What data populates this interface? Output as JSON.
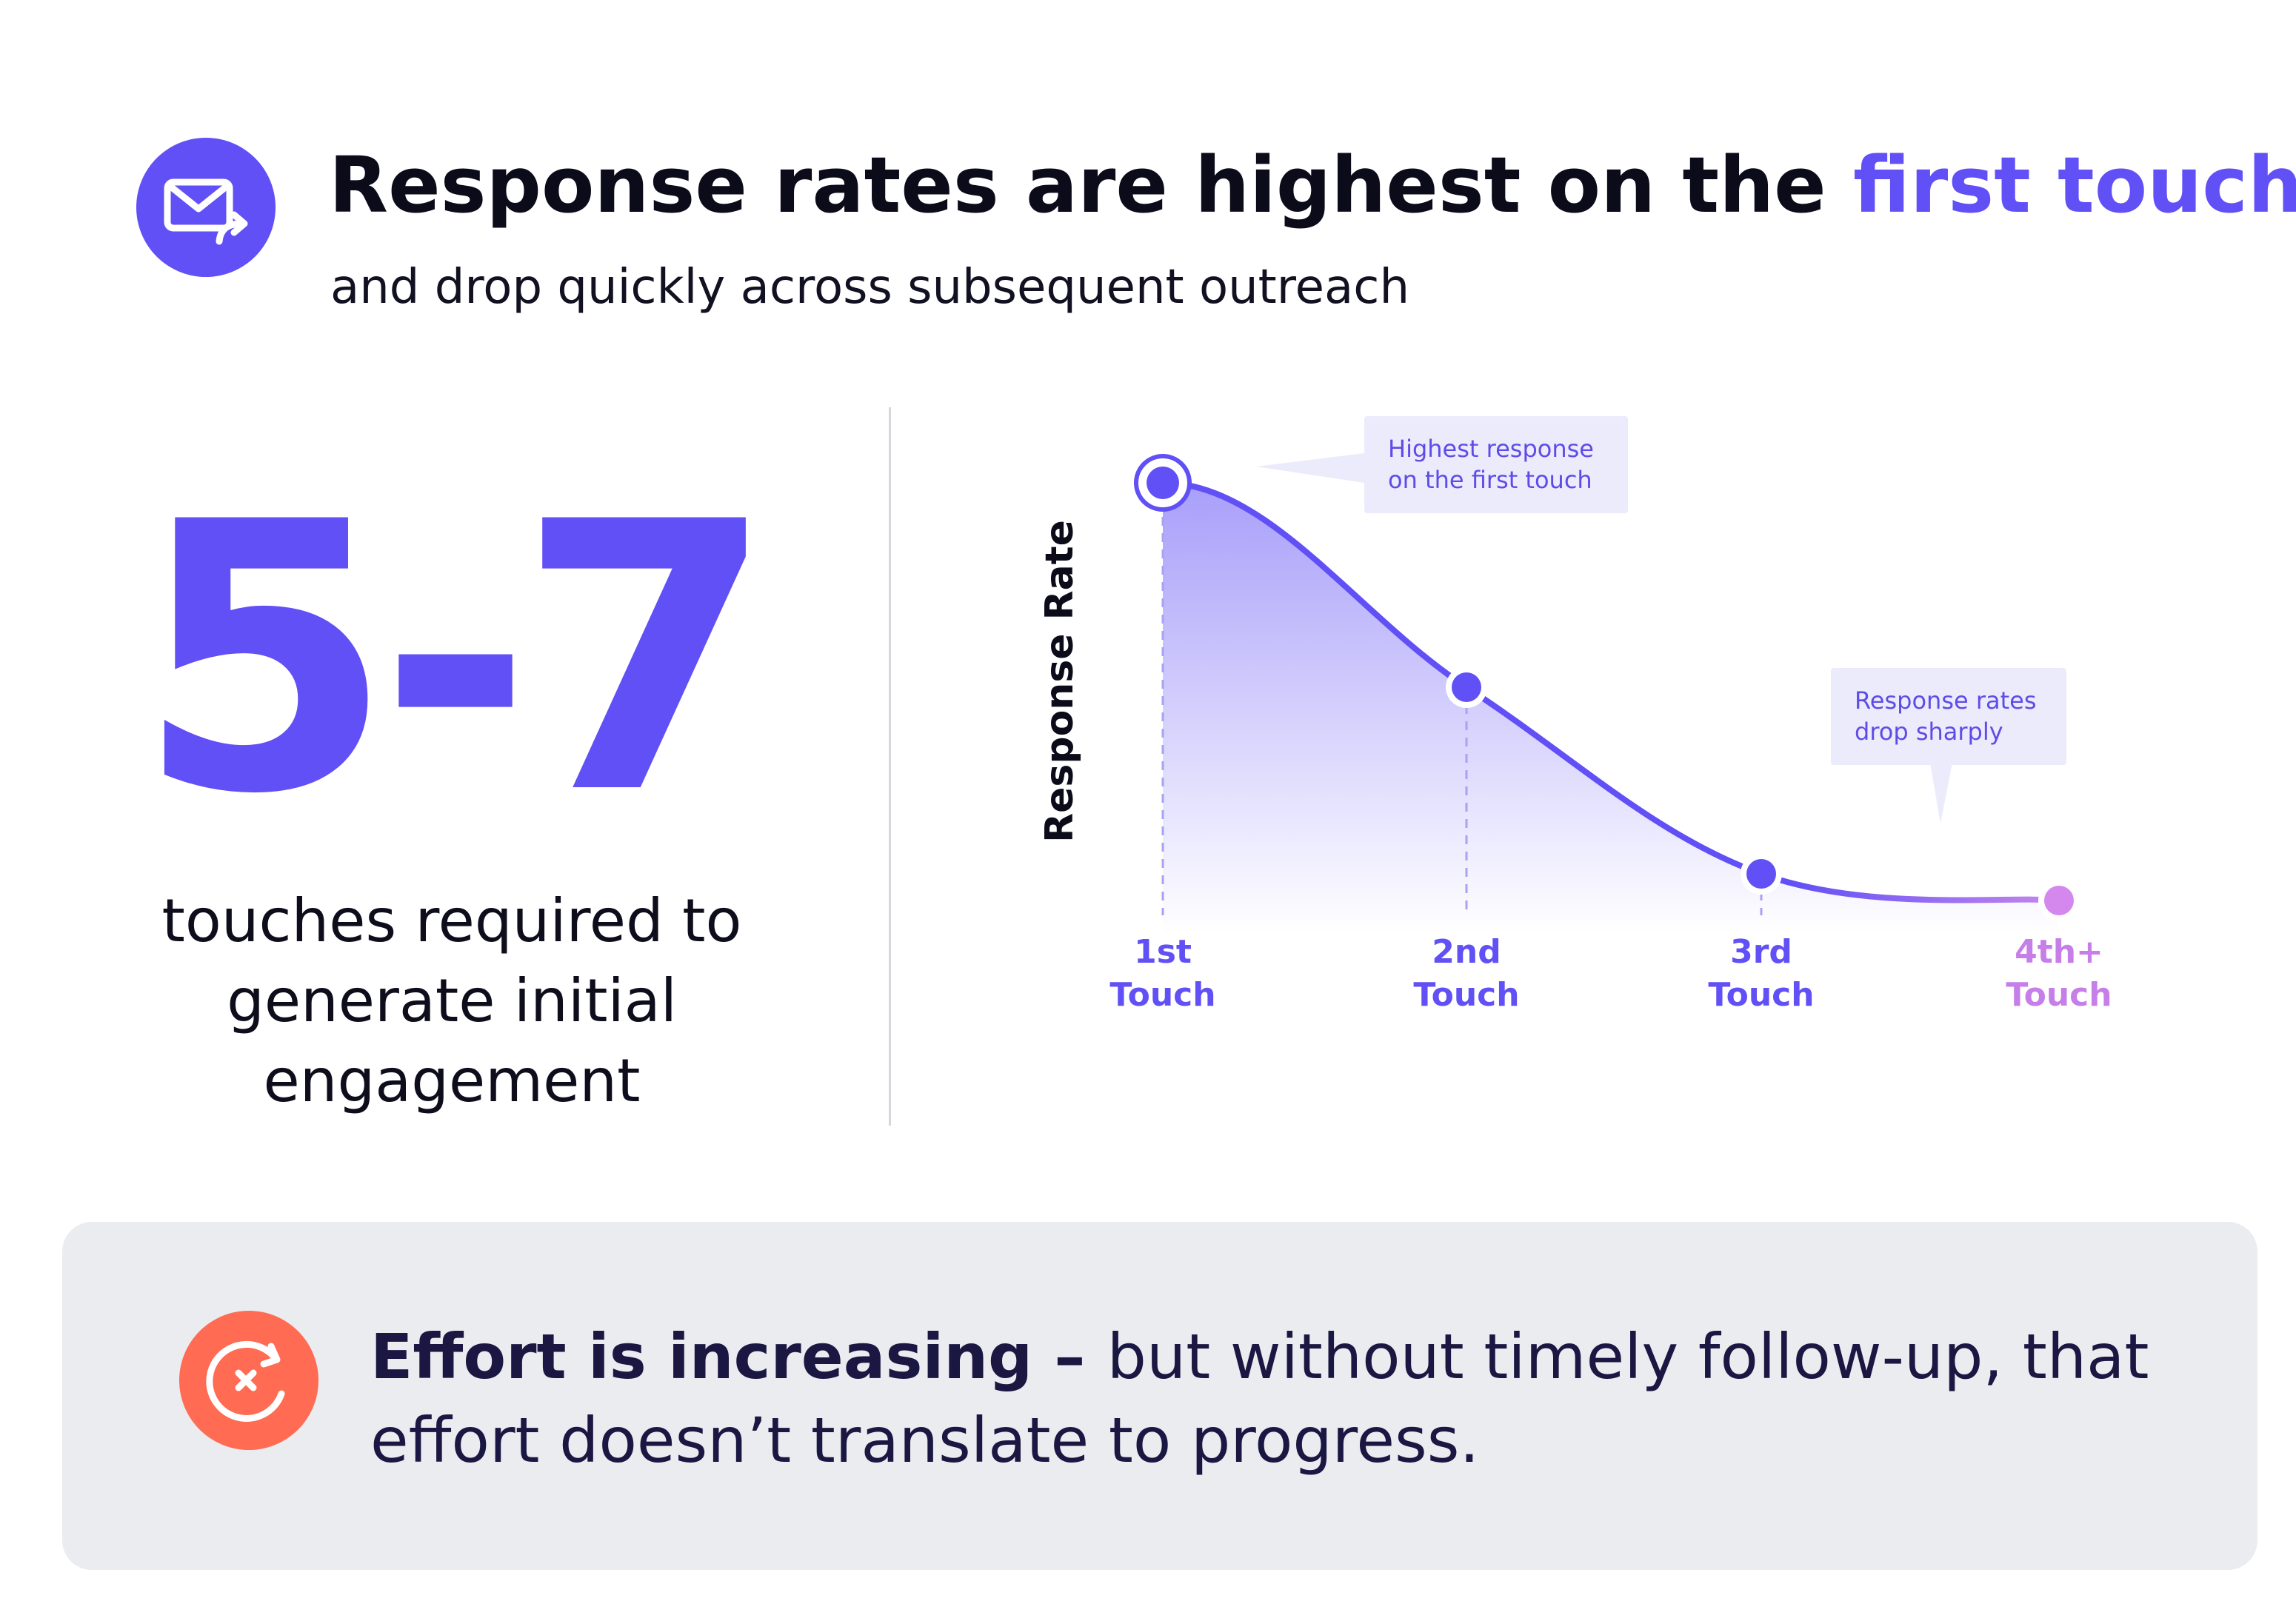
{
  "header": {
    "icon": "mail-forward-icon",
    "title_main": "Response rates are highest on the ",
    "title_accent": "first touch",
    "subtitle": "and drop quickly across subsequent outreach"
  },
  "stat": {
    "value": "5-7",
    "caption": "touches required to generate initial engagement"
  },
  "chart_data": {
    "type": "area",
    "ylabel": "Response Rate",
    "categories": [
      {
        "line1": "1st",
        "line2": "Touch"
      },
      {
        "line1": "2nd",
        "line2": "Touch"
      },
      {
        "line1": "3rd",
        "line2": "Touch"
      },
      {
        "line1": "4th+",
        "line2": "Touch"
      }
    ],
    "values": [
      1.0,
      0.54,
      0.12,
      0.06
    ],
    "ylim": [
      0,
      1
    ],
    "annotations": [
      "Highest response on the first touch",
      "Response rates drop sharply"
    ],
    "colors": {
      "accent": "#6150f5",
      "last_point": "#d487ec",
      "label_last": "#c67ee8"
    }
  },
  "footer": {
    "icon": "cancel-cycle-icon",
    "bold_text": "Effort is increasing – ",
    "text": "but without timely follow-up, that effort doesn’t translate to progress."
  },
  "colors": {
    "accent": "#6150f5",
    "footer_icon": "#ff6b53",
    "footer_bg": "#eaecf0"
  }
}
